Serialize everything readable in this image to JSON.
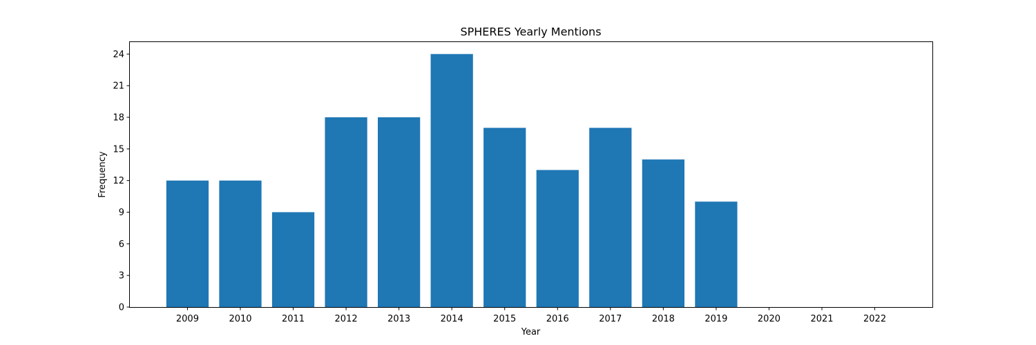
{
  "chart_data": {
    "type": "bar",
    "title": "SPHERES Yearly Mentions",
    "xlabel": "Year",
    "ylabel": "Frequency",
    "categories": [
      "2009",
      "2010",
      "2011",
      "2012",
      "2013",
      "2014",
      "2015",
      "2016",
      "2017",
      "2018",
      "2019",
      "2020",
      "2021",
      "2022"
    ],
    "values": [
      12,
      12,
      9,
      18,
      18,
      24,
      17,
      13,
      17,
      14,
      10,
      0,
      0,
      0
    ],
    "yticks": [
      "0",
      "3",
      "6",
      "9",
      "12",
      "15",
      "18",
      "21",
      "24"
    ],
    "ylim": [
      0,
      25.2
    ],
    "bar_color": "#1f77b4",
    "grid": false,
    "legend": "none"
  }
}
